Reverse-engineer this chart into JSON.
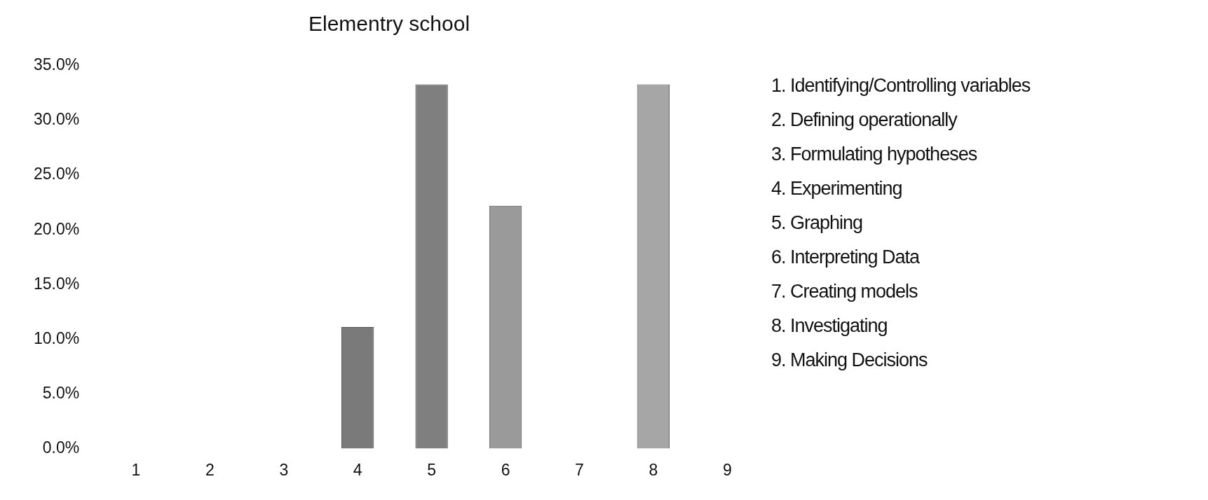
{
  "chart_data": {
    "type": "bar",
    "title": "Elementry school",
    "categories": [
      "1",
      "2",
      "3",
      "4",
      "5",
      "6",
      "7",
      "8",
      "9"
    ],
    "values": [
      0,
      0,
      0,
      11.1,
      33.3,
      22.2,
      0,
      33.3,
      0
    ],
    "colors": [
      "#808080",
      "#808080",
      "#808080",
      "#7a7a7a",
      "#7f7f7f",
      "#9a9a9a",
      "#808080",
      "#a6a6a6",
      "#808080"
    ],
    "ylim": [
      0,
      35
    ],
    "yticks": [
      {
        "value": 0,
        "label": "0.0%"
      },
      {
        "value": 5,
        "label": "5.0%"
      },
      {
        "value": 10,
        "label": "10.0%"
      },
      {
        "value": 15,
        "label": "15.0%"
      },
      {
        "value": 20,
        "label": "20.0%"
      },
      {
        "value": 25,
        "label": "25.0%"
      },
      {
        "value": 30,
        "label": "30.0%"
      },
      {
        "value": 35,
        "label": "35.0%"
      }
    ],
    "grid": false,
    "legend": false,
    "annotations": [
      "1. Identifying/Controlling variables",
      "2. Defining operationally",
      "3. Formulating hypotheses",
      "4. Experimenting",
      "5. Graphing",
      "6. Interpreting Data",
      "7. Creating models",
      "8. Investigating",
      "9. Making Decisions"
    ]
  }
}
